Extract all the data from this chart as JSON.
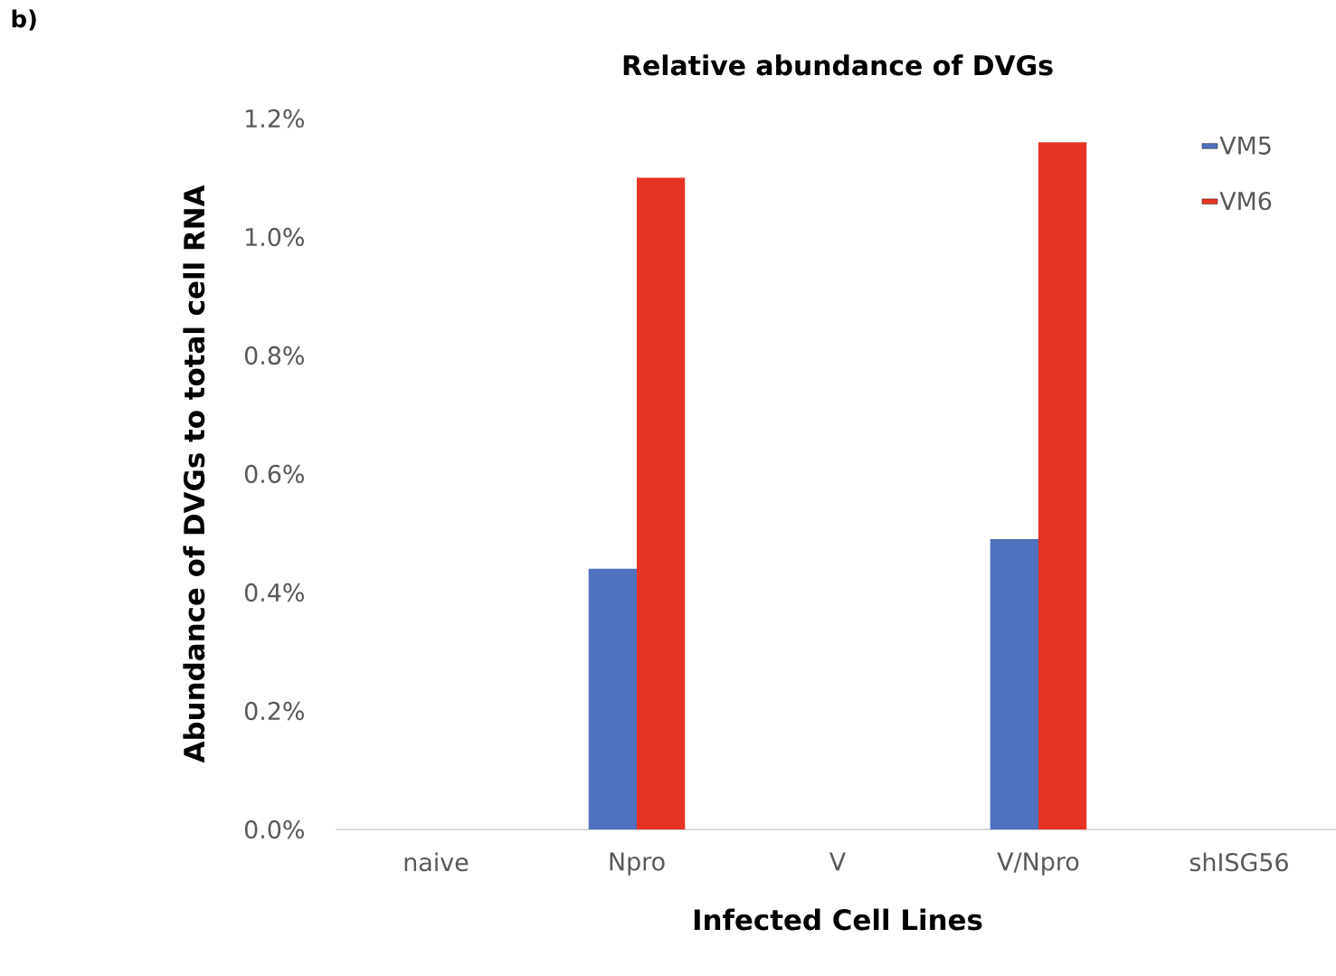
{
  "chart_data": {
    "type": "bar",
    "title": "Relative abundance of DVGs",
    "xlabel": "Infected Cell Lines",
    "ylabel": "Abundance of DVGs to total cell RNA",
    "annotations": [
      "b)"
    ],
    "categories": [
      "naive",
      "Npro",
      "V",
      "V/Npro",
      "shISG56"
    ],
    "series": [
      {
        "name": "VM5",
        "color": "#4f71be",
        "values": [
          0,
          0.44,
          0,
          0.49,
          0
        ]
      },
      {
        "name": "VM6",
        "color": "#e63323",
        "values": [
          0,
          1.1,
          0,
          1.16,
          0
        ]
      }
    ],
    "ylim": [
      0,
      1.2
    ],
    "yticks": [
      {
        "value": 0,
        "label": "0.0%"
      },
      {
        "value": 0.2,
        "label": "0.2%"
      },
      {
        "value": 0.4,
        "label": "0.4%"
      },
      {
        "value": 0.6,
        "label": "0.6%"
      },
      {
        "value": 0.8,
        "label": "0.8%"
      },
      {
        "value": 1.0,
        "label": "1.0%"
      },
      {
        "value": 1.2,
        "label": "1.2%"
      }
    ],
    "grid": false,
    "legend": "top right"
  }
}
